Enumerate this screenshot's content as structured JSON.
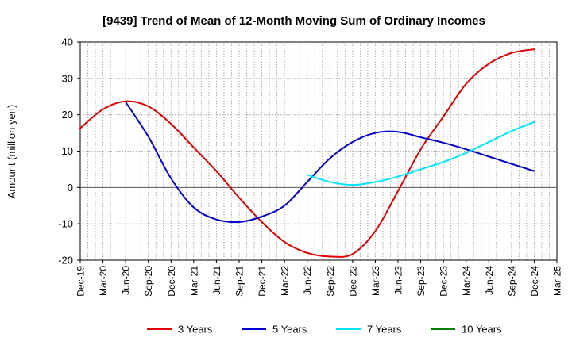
{
  "chart_data": {
    "type": "line",
    "title": "[9439]  Trend of Mean of 12-Month Moving Sum of Ordinary Incomes",
    "xlabel": "",
    "ylabel": "Amount (million yen)",
    "ylim": [
      -20,
      40
    ],
    "yticks": [
      -20,
      -10,
      0,
      10,
      20,
      30,
      40
    ],
    "grid": true,
    "legend_position": "bottom",
    "categories": [
      "Dec-19",
      "Mar-20",
      "Jun-20",
      "Sep-20",
      "Dec-20",
      "Mar-21",
      "Jun-21",
      "Sep-21",
      "Dec-21",
      "Mar-22",
      "Jun-22",
      "Sep-22",
      "Dec-22",
      "Mar-23",
      "Jun-23",
      "Sep-23",
      "Dec-23",
      "Mar-24",
      "Jun-24",
      "Sep-24",
      "Dec-24",
      "Mar-25"
    ],
    "series": [
      {
        "name": "3 Years",
        "color": "#e00000",
        "values": [
          16.3,
          21.5,
          23.7,
          22.3,
          17.5,
          11.0,
          4.5,
          -2.8,
          -9.5,
          -15.0,
          -18.0,
          -19.0,
          -18.3,
          -12.0,
          -1.0,
          10.5,
          19.5,
          28.5,
          34.0,
          37.0,
          38.0,
          null
        ]
      },
      {
        "name": "5 Years",
        "color": "#0000cc",
        "values": [
          null,
          null,
          23.5,
          14.0,
          2.5,
          -5.5,
          -8.8,
          -9.5,
          -8.0,
          -5.0,
          1.5,
          8.0,
          12.5,
          15.0,
          15.3,
          13.8,
          12.3,
          10.5,
          8.5,
          6.5,
          4.5,
          null
        ]
      },
      {
        "name": "7 Years",
        "color": "#00e6ff",
        "values": [
          null,
          null,
          null,
          null,
          null,
          null,
          null,
          null,
          null,
          null,
          3.5,
          1.5,
          0.7,
          1.5,
          3.0,
          5.0,
          7.0,
          9.5,
          12.5,
          15.5,
          18.0,
          null
        ]
      },
      {
        "name": "10 Years",
        "color": "#008000",
        "values": [
          null,
          null,
          null,
          null,
          null,
          null,
          null,
          null,
          null,
          null,
          null,
          null,
          null,
          null,
          null,
          null,
          null,
          null,
          null,
          null,
          null,
          null
        ]
      }
    ]
  }
}
